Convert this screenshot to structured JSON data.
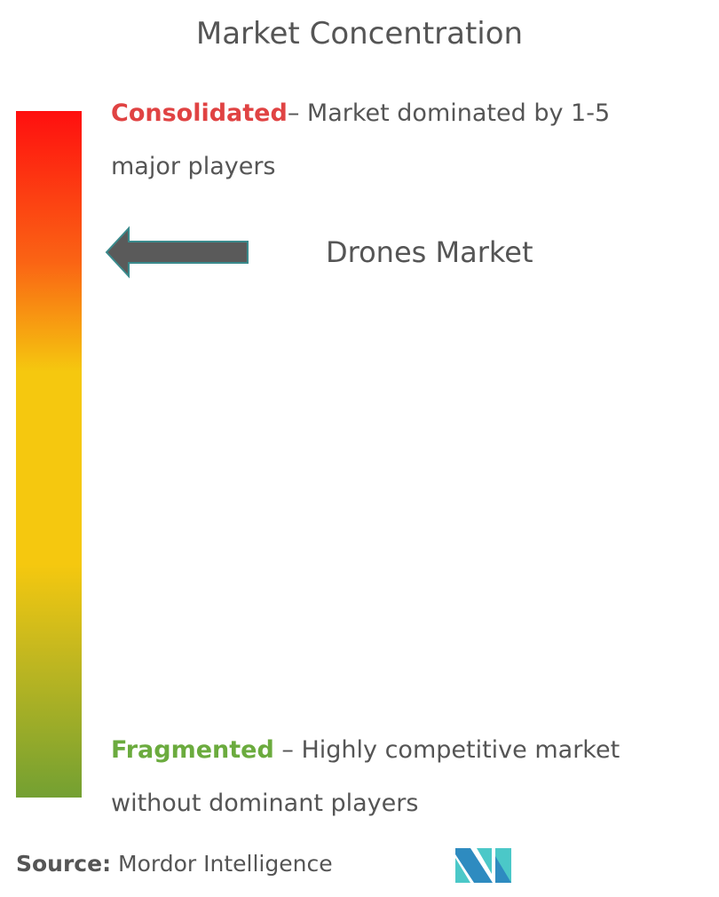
{
  "title": "Market Concentration",
  "consolidated": {
    "label": "Consolidated",
    "description": "– Market dominated by 1-5 major players"
  },
  "fragmented": {
    "label": "Fragmented",
    "description": " – Highly competitive market without dominant players"
  },
  "indicator": {
    "market_name": "Drones Market",
    "arrow_icon": "left-arrow-icon"
  },
  "scale_colors": {
    "top": "#ff0f0f",
    "middle": "#f5c80f",
    "bottom": "#73a032"
  },
  "source": {
    "label": "Source:",
    "value": " Mordor Intelligence"
  },
  "logo": "Mordor Intelligence logo"
}
